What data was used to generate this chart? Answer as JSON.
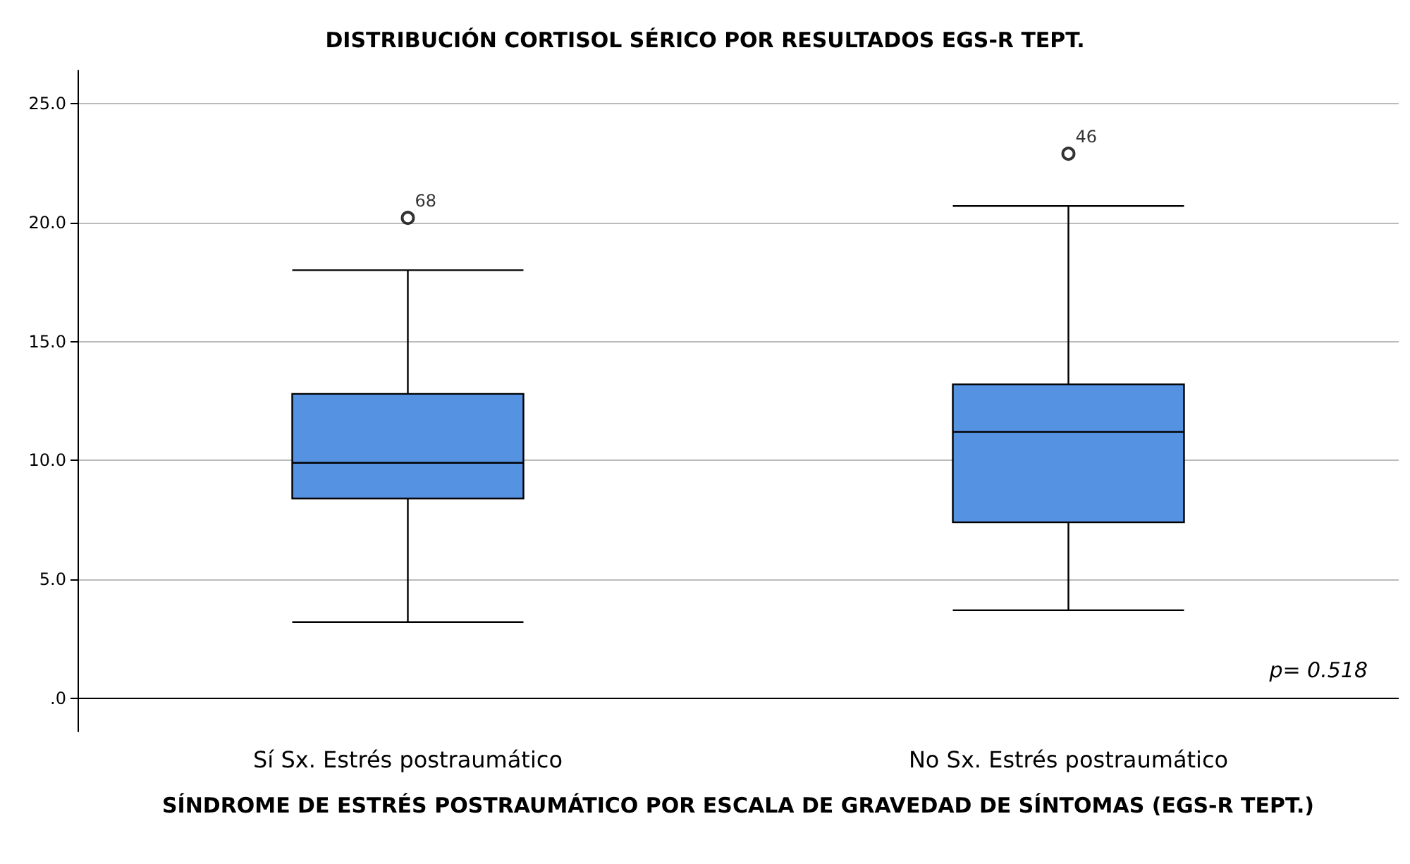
{
  "chart_data": {
    "type": "box",
    "title": "DISTRIBUCIÓN CORTISOL SÉRICO POR RESULTADOS EGS-R TEPT.",
    "xlabel": "SÍNDROME DE ESTRÉS POSTRAUMÁTICO POR ESCALA DE GRAVEDAD DE SÍNTOMAS (EGS-R TEPT.)",
    "categories": [
      "Sí Sx. Estrés postraumático",
      "No Sx. Estrés postraumático"
    ],
    "boxes": [
      {
        "low": 3.2,
        "q1": 8.4,
        "median": 9.9,
        "q3": 12.8,
        "high": 18.0,
        "outliers": [
          20.2
        ]
      },
      {
        "low": 3.7,
        "q1": 7.4,
        "median": 11.2,
        "q3": 13.2,
        "high": 20.7,
        "outliers": [
          22.9
        ]
      }
    ],
    "color": "#5592e2",
    "ylim": [
      -1.4,
      26.4
    ],
    "yticks": [
      {
        "value": 0,
        "label": ".0"
      },
      {
        "value": 5,
        "label": "5.0"
      },
      {
        "value": 10,
        "label": "10.0"
      },
      {
        "value": 15,
        "label": "15.0"
      },
      {
        "value": 20,
        "label": "20.0"
      },
      {
        "value": 25,
        "label": "25.0"
      }
    ],
    "grid": "y",
    "annotations": [
      "68",
      "46",
      "p= 0.518"
    ]
  }
}
